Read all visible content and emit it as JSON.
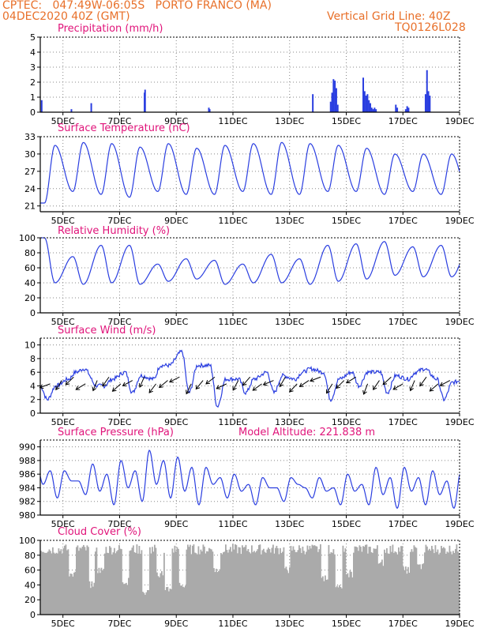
{
  "header": {
    "source": "CPTEC:",
    "coords": "047:49W-06:05S",
    "location": "PORTO FRANCO (MA)",
    "datetime": "04DEC2020 40Z (GMT)",
    "grid_note": "Vertical Grid Line: 40Z",
    "code": "TQ0126L028"
  },
  "colors": {
    "line": "#2a3ee0",
    "bars": "#2a3ee0",
    "cloud": "#aaaaaa",
    "title": "#e0147a",
    "header": "#e8702a",
    "arrows": "#000000"
  },
  "x_axis": {
    "ticks": [
      "5DEC",
      "7DEC",
      "9DEC",
      "11DEC",
      "13DEC",
      "15DEC",
      "17DEC",
      "19DEC"
    ],
    "tick_days": [
      5,
      7,
      9,
      11,
      13,
      15,
      17,
      19
    ],
    "range_days": [
      4.2,
      19
    ]
  },
  "chart_data": [
    {
      "type": "bar",
      "title": "Precipitation (mm/h)",
      "ylim": [
        0,
        5
      ],
      "yticks": [
        0,
        1,
        2,
        3,
        4,
        5
      ],
      "x_days": [
        4.25,
        5.3,
        6.0,
        7.88,
        7.9,
        10.15,
        10.18,
        13.82,
        14.45,
        14.5,
        14.55,
        14.6,
        14.65,
        14.7,
        15.6,
        15.65,
        15.7,
        15.75,
        15.8,
        15.85,
        15.9,
        15.95,
        16.0,
        16.05,
        16.75,
        16.8,
        17.1,
        17.15,
        17.2,
        17.8,
        17.85,
        17.9,
        17.95
      ],
      "values": [
        0.8,
        0.2,
        0.6,
        1.3,
        1.5,
        0.3,
        0.2,
        1.2,
        0.7,
        1.3,
        2.2,
        2.1,
        1.6,
        0.5,
        2.3,
        1.4,
        1.1,
        1.2,
        0.8,
        0.6,
        0.3,
        0.2,
        0.3,
        0.2,
        0.5,
        0.3,
        0.2,
        0.4,
        0.3,
        1.2,
        2.8,
        1.4,
        1.1
      ]
    },
    {
      "type": "line",
      "title": "Surface Temperature (nC)",
      "ylim": [
        20,
        33
      ],
      "yticks": [
        21,
        24,
        27,
        30,
        33
      ],
      "mins": [
        21.5,
        23.5,
        23.0,
        22.5,
        23.5,
        23.0,
        23.0,
        23.5,
        23.0,
        23.0,
        23.5,
        23.5,
        23.0,
        23.5,
        23.0,
        22.5
      ],
      "maxs": [
        31.5,
        32.0,
        31.8,
        31.2,
        31.8,
        31.0,
        31.5,
        31.8,
        32.0,
        31.8,
        31.5,
        31.0,
        30.0,
        30.0,
        30.0,
        31.2
      ]
    },
    {
      "type": "line",
      "title": "Relative Humidity (%)",
      "ylim": [
        0,
        100
      ],
      "yticks": [
        0,
        20,
        40,
        60,
        80,
        100
      ],
      "peaks": [
        100,
        75,
        90,
        90,
        65,
        72,
        70,
        65,
        78,
        72,
        90,
        92,
        95,
        88,
        90,
        88
      ],
      "troughs": [
        40,
        38,
        40,
        38,
        42,
        45,
        38,
        40,
        40,
        38,
        42,
        45,
        50,
        48,
        48,
        45
      ]
    },
    {
      "type": "line",
      "title": "Surface Wind (m/s)",
      "ylim": [
        0,
        11
      ],
      "yticks": [
        0,
        2,
        4,
        6,
        8,
        10
      ],
      "values_per_day": [
        [
          4,
          2
        ],
        [
          5,
          6
        ],
        [
          4,
          4
        ],
        [
          6,
          3
        ],
        [
          5,
          7
        ],
        [
          9,
          3
        ],
        [
          7,
          1
        ],
        [
          5,
          3
        ],
        [
          6,
          3
        ],
        [
          5,
          6
        ],
        [
          6,
          2
        ],
        [
          6,
          4
        ],
        [
          6,
          3
        ],
        [
          5,
          6
        ],
        [
          5,
          2
        ],
        [
          5,
          6
        ]
      ]
    },
    {
      "type": "line",
      "title": "Surface Pressure (hPa)",
      "model_altitude": "Model Altitude: 221.838 m",
      "ylim": [
        980,
        991
      ],
      "yticks": [
        980,
        982,
        984,
        986,
        988,
        990
      ],
      "peaks": [
        988.0,
        986.5,
        987.5,
        988.0,
        989.5,
        988.5,
        987.0,
        986.0,
        985.5,
        985.5,
        985.5,
        986.0,
        987.0,
        987.0,
        986.5,
        986.5
      ],
      "troughs": [
        982.5,
        983.0,
        981.5,
        982.0,
        982.5,
        981.5,
        982.5,
        981.5,
        982.0,
        982.5,
        981.5,
        981.5,
        981.0,
        981.5,
        981.0,
        981.5
      ]
    },
    {
      "type": "area",
      "title": "Cloud Cover (%)",
      "ylim": [
        0,
        100
      ],
      "yticks": [
        0,
        20,
        40,
        60,
        80,
        100
      ],
      "typical": 88,
      "dips_days": [
        5.3,
        6.0,
        6.3,
        7.2,
        7.9,
        8.4,
        8.7,
        9.2,
        10.4,
        12.9,
        14.2,
        14.7,
        15.1,
        16.2,
        17.1,
        17.6
      ],
      "dips_values": [
        55,
        40,
        60,
        45,
        30,
        55,
        35,
        40,
        60,
        60,
        50,
        35,
        55,
        70,
        60,
        65
      ]
    }
  ]
}
